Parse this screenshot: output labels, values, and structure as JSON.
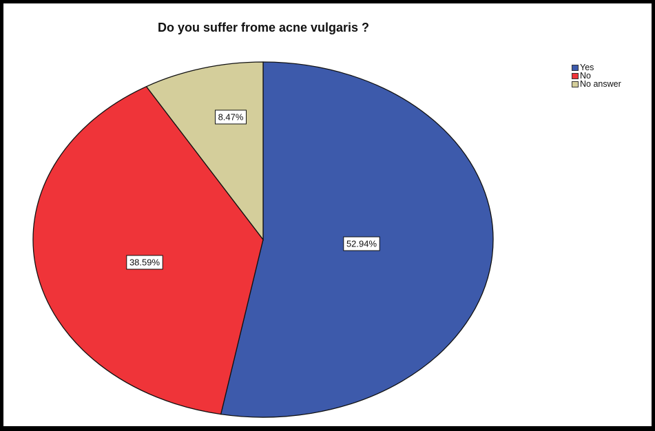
{
  "chart_data": {
    "type": "pie",
    "title": "Do you suffer frome acne vulgaris ?",
    "slices": [
      {
        "label": "Yes",
        "value": 52.94,
        "value_label": "52.94%",
        "color": "#3d5aab"
      },
      {
        "label": "No",
        "value": 38.59,
        "value_label": "38.59%",
        "color": "#ef3439"
      },
      {
        "label": "No answer",
        "value": 8.47,
        "value_label": "8.47%",
        "color": "#d4ce9b"
      }
    ],
    "start_angle": "12 o'clock",
    "direction": "clockwise",
    "legend_position": "top-right"
  }
}
